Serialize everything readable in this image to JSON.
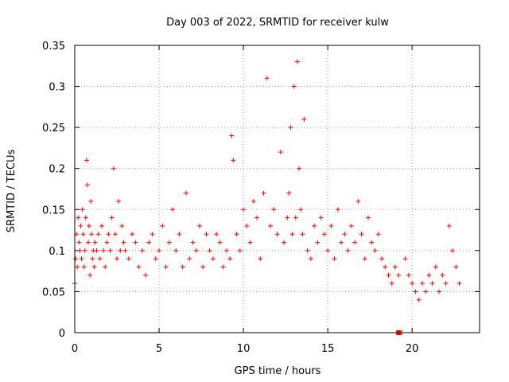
{
  "chart_data": {
    "type": "scatter",
    "title": "Day 003 of 2022, SRMTID for receiver kulw",
    "xlabel": "GPS time / hours",
    "ylabel": "SRMTID / TECUs",
    "xlim": [
      0,
      24
    ],
    "ylim": [
      0,
      0.35
    ],
    "xticks": [
      0,
      5,
      10,
      15,
      20
    ],
    "xtick_labels": [
      "0",
      "5",
      "10",
      "15",
      "20"
    ],
    "yticks": [
      0,
      0.05,
      0.1,
      0.15,
      0.2,
      0.25,
      0.3,
      0.35
    ],
    "ytick_labels": [
      "0",
      "0.05",
      "0.1",
      "0.15",
      "0.2",
      "0.25",
      "0.3",
      "0.35"
    ],
    "grid": true,
    "marker": "+",
    "color": "#ff0000",
    "series": [
      {
        "name": "SRMTID",
        "x": [
          0.0,
          0.05,
          0.1,
          0.15,
          0.2,
          0.25,
          0.3,
          0.35,
          0.4,
          0.45,
          0.5,
          0.55,
          0.6,
          0.65,
          0.7,
          0.75,
          0.8,
          0.85,
          0.9,
          0.95,
          1.0,
          1.05,
          1.1,
          1.15,
          1.2,
          1.3,
          1.4,
          1.5,
          1.6,
          1.7,
          1.8,
          1.9,
          2.0,
          2.1,
          2.2,
          2.3,
          2.4,
          2.5,
          2.6,
          2.7,
          2.8,
          2.9,
          3.0,
          3.2,
          3.4,
          3.6,
          3.8,
          4.0,
          4.2,
          4.4,
          4.6,
          4.8,
          5.0,
          5.2,
          5.4,
          5.6,
          5.8,
          6.0,
          6.2,
          6.4,
          6.6,
          6.8,
          7.0,
          7.2,
          7.4,
          7.6,
          7.8,
          8.0,
          8.2,
          8.4,
          8.6,
          8.8,
          9.0,
          9.2,
          9.3,
          9.4,
          9.6,
          9.8,
          10.0,
          10.2,
          10.4,
          10.6,
          10.8,
          11.0,
          11.2,
          11.4,
          11.6,
          11.8,
          12.0,
          12.2,
          12.4,
          12.6,
          12.7,
          12.8,
          12.9,
          13.0,
          13.1,
          13.2,
          13.3,
          13.4,
          13.5,
          13.6,
          13.8,
          14.0,
          14.2,
          14.4,
          14.6,
          14.8,
          15.0,
          15.2,
          15.4,
          15.6,
          15.8,
          16.0,
          16.2,
          16.4,
          16.6,
          16.8,
          17.0,
          17.2,
          17.4,
          17.6,
          17.8,
          18.0,
          18.2,
          18.4,
          18.6,
          18.8,
          19.0,
          19.2,
          19.4,
          19.6,
          19.8,
          20.0,
          20.2,
          20.4,
          20.6,
          20.8,
          21.0,
          21.2,
          21.4,
          21.6,
          21.8,
          22.0,
          22.2,
          22.4,
          22.6,
          22.8
        ],
        "y": [
          0.06,
          0.09,
          0.12,
          0.08,
          0.14,
          0.11,
          0.1,
          0.13,
          0.09,
          0.15,
          0.12,
          0.08,
          0.1,
          0.14,
          0.21,
          0.18,
          0.11,
          0.13,
          0.07,
          0.16,
          0.12,
          0.09,
          0.1,
          0.08,
          0.11,
          0.1,
          0.12,
          0.09,
          0.13,
          0.1,
          0.08,
          0.11,
          0.12,
          0.1,
          0.14,
          0.2,
          0.12,
          0.09,
          0.16,
          0.1,
          0.13,
          0.11,
          0.1,
          0.09,
          0.12,
          0.11,
          0.08,
          0.1,
          0.07,
          0.11,
          0.12,
          0.09,
          0.1,
          0.13,
          0.08,
          0.11,
          0.15,
          0.1,
          0.12,
          0.08,
          0.17,
          0.09,
          0.11,
          0.1,
          0.13,
          0.08,
          0.12,
          0.1,
          0.09,
          0.12,
          0.11,
          0.08,
          0.1,
          0.09,
          0.24,
          0.21,
          0.12,
          0.1,
          0.15,
          0.13,
          0.11,
          0.16,
          0.14,
          0.09,
          0.17,
          0.31,
          0.13,
          0.15,
          0.12,
          0.22,
          0.11,
          0.14,
          0.17,
          0.25,
          0.12,
          0.3,
          0.14,
          0.33,
          0.2,
          0.15,
          0.12,
          0.26,
          0.1,
          0.09,
          0.13,
          0.11,
          0.14,
          0.12,
          0.1,
          0.13,
          0.09,
          0.15,
          0.11,
          0.12,
          0.1,
          0.13,
          0.11,
          0.16,
          0.12,
          0.09,
          0.14,
          0.11,
          0.1,
          0.12,
          0.09,
          0.08,
          0.07,
          0.06,
          0.08,
          0.07,
          0.0,
          0.09,
          0.07,
          0.06,
          0.05,
          0.04,
          0.06,
          0.05,
          0.07,
          0.06,
          0.08,
          0.05,
          0.07,
          0.06,
          0.13,
          0.1,
          0.08,
          0.06
        ]
      }
    ],
    "annotations": [
      {
        "type": "square",
        "x": 19.2,
        "y": 0.0
      }
    ]
  }
}
